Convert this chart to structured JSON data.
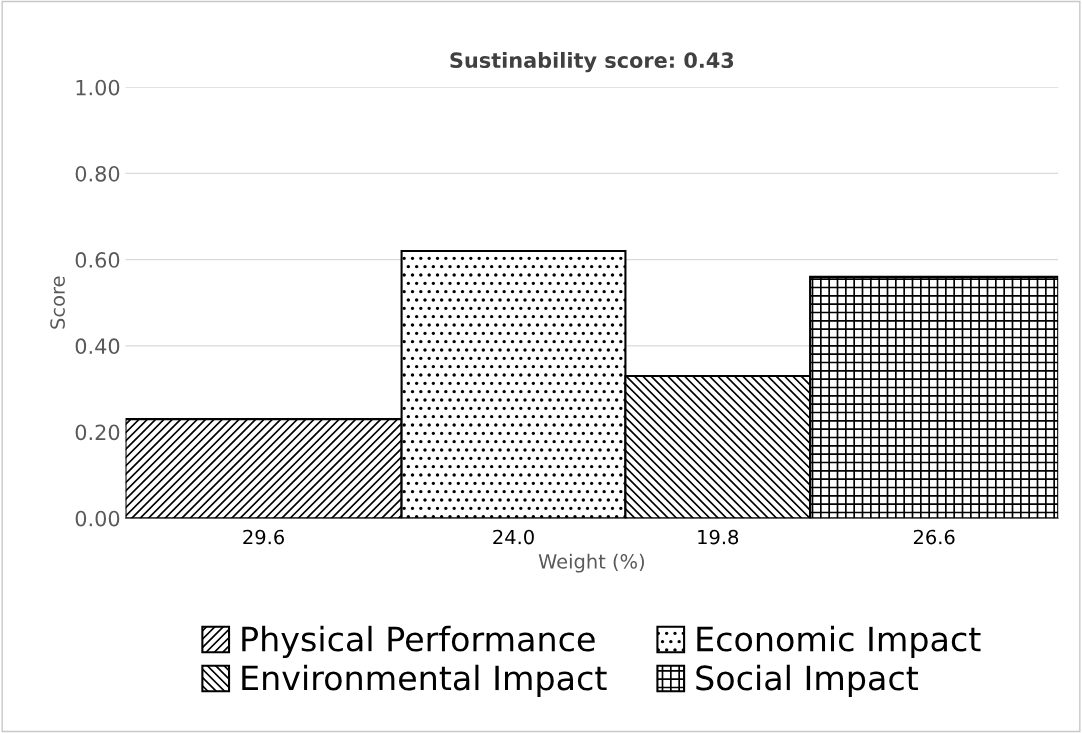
{
  "chart_data": {
    "type": "bar",
    "title": "Sustinability score: 0.43",
    "xlabel": "Weight (%)",
    "ylabel": "Score",
    "categories": [
      "29.6",
      "24.0",
      "19.8",
      "26.6"
    ],
    "series": [
      {
        "name": "Physical Performance",
        "color": "#000000",
        "values": [
          0.23,
          null,
          null,
          null
        ]
      },
      {
        "name": "Economic Impact",
        "color": "#000000",
        "values": [
          null,
          0.62,
          null,
          null
        ]
      },
      {
        "name": "Environmental Impact",
        "color": "#000000",
        "values": [
          null,
          null,
          0.33,
          null
        ]
      },
      {
        "name": "Social Impact",
        "color": "#000000",
        "values": [
          null,
          null,
          null,
          0.56
        ]
      }
    ],
    "ylim": [
      0,
      1
    ],
    "yticks": [
      {
        "value": 0,
        "label": "0.00"
      },
      {
        "value": 0.2,
        "label": "0.20"
      },
      {
        "value": 0.4,
        "label": "0.40"
      },
      {
        "value": 0.6,
        "label": "0.60"
      },
      {
        "value": 0.8,
        "label": "0.80"
      },
      {
        "value": 1,
        "label": "1.00"
      }
    ],
    "grid": "y",
    "legend": "bottom"
  }
}
